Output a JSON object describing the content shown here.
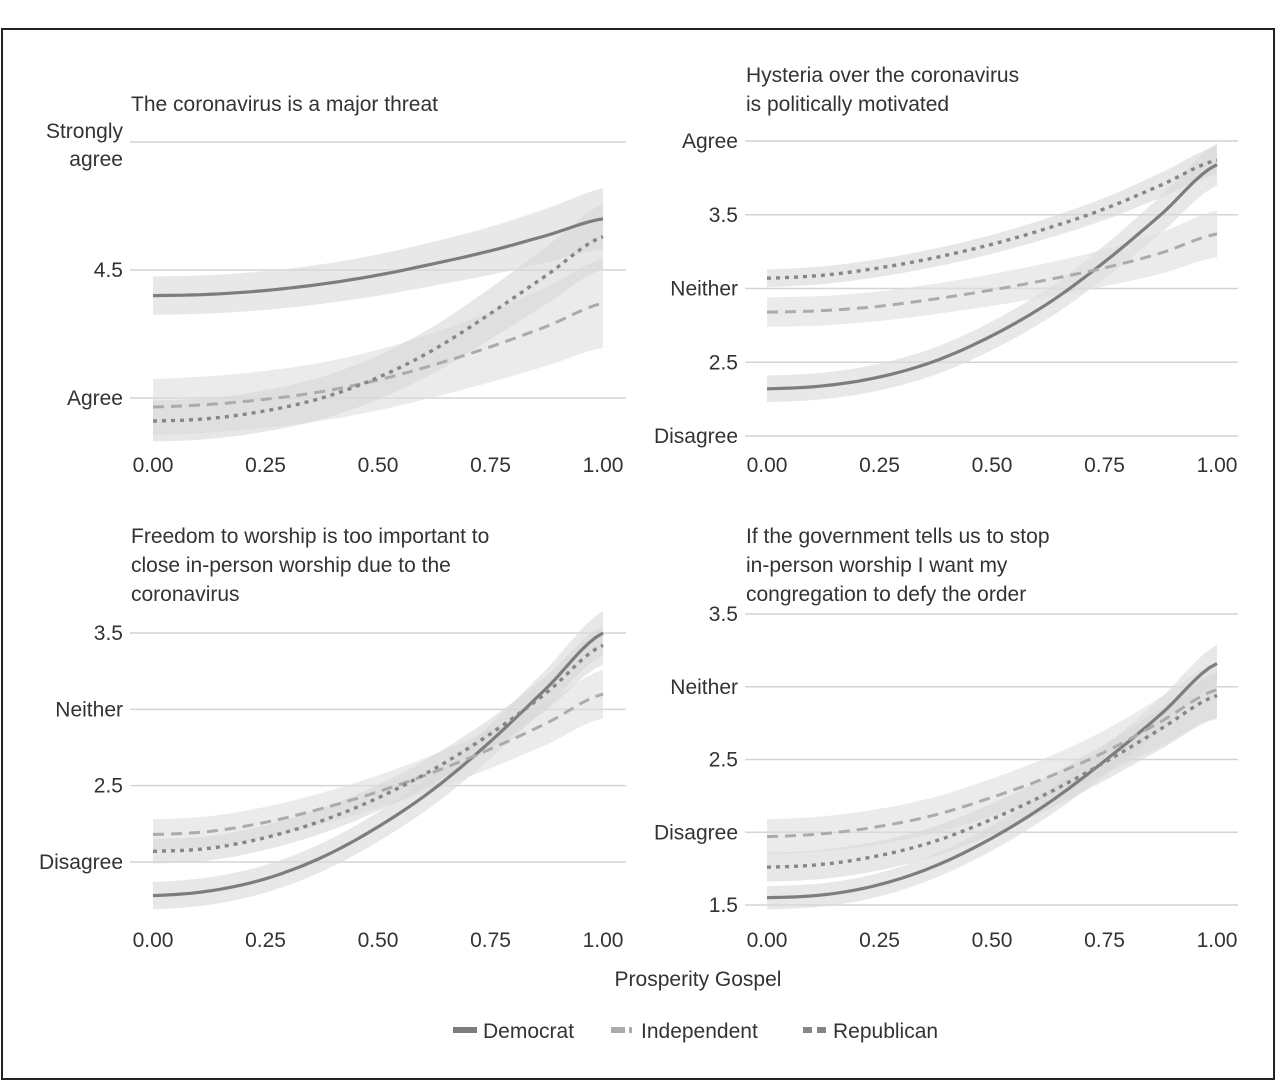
{
  "figure": {
    "xlabel": "Prosperity Gospel",
    "legend": [
      {
        "name": "Democrat",
        "color": "#7d7d7d",
        "style": "solid"
      },
      {
        "name": "Independent",
        "color": "#aeaeae",
        "style": "dashed"
      },
      {
        "name": "Republican",
        "color": "#8a8a8a",
        "style": "dotted"
      }
    ]
  },
  "chart_data": [
    {
      "type": "line",
      "title": "The coronavirus is a major threat",
      "xlabel": "",
      "ylabel": "",
      "x": [
        0,
        0.125,
        0.25,
        0.375,
        0.5,
        0.625,
        0.75,
        0.875,
        1
      ],
      "xticks": [
        "0.00",
        "0.25",
        "0.50",
        "0.75",
        "1.00"
      ],
      "ylim": [
        3.82,
        5.0
      ],
      "yticks": [
        {
          "value": 4.0,
          "label": "Agree"
        },
        {
          "value": 4.5,
          "label": "4.5"
        },
        {
          "value": 5.0,
          "label": "Strongly agree"
        }
      ],
      "series": [
        {
          "name": "Democrat",
          "values": [
            4.4,
            4.405,
            4.42,
            4.445,
            4.48,
            4.525,
            4.575,
            4.635,
            4.7
          ],
          "band": 0.075
        },
        {
          "name": "Independent",
          "values": [
            3.965,
            3.975,
            3.995,
            4.025,
            4.07,
            4.13,
            4.2,
            4.28,
            4.37
          ],
          "band": 0.11
        },
        {
          "name": "Republican",
          "values": [
            3.91,
            3.92,
            3.95,
            4.0,
            4.08,
            4.19,
            4.33,
            4.48,
            4.63
          ],
          "band": 0.08
        }
      ]
    },
    {
      "type": "line",
      "title": "Hysteria over the coronavirus is politically motivated",
      "xlabel": "",
      "ylabel": "",
      "x": [
        0,
        0.125,
        0.25,
        0.375,
        0.5,
        0.625,
        0.75,
        0.875,
        1
      ],
      "xticks": [
        "0.00",
        "0.25",
        "0.50",
        "0.75",
        "1.00"
      ],
      "ylim": [
        2.0,
        4.0
      ],
      "yticks": [
        {
          "value": 2.0,
          "label": "Disagree"
        },
        {
          "value": 2.5,
          "label": "2.5"
        },
        {
          "value": 3.0,
          "label": "Neither"
        },
        {
          "value": 3.5,
          "label": "3.5"
        },
        {
          "value": 4.0,
          "label": "Agree"
        }
      ],
      "series": [
        {
          "name": "Democrat",
          "values": [
            2.32,
            2.34,
            2.4,
            2.51,
            2.68,
            2.9,
            3.18,
            3.5,
            3.84
          ],
          "band": 0.09
        },
        {
          "name": "Independent",
          "values": [
            2.84,
            2.85,
            2.88,
            2.93,
            2.99,
            3.06,
            3.14,
            3.24,
            3.37
          ],
          "band": 0.1
        },
        {
          "name": "Republican",
          "values": [
            3.07,
            3.09,
            3.14,
            3.21,
            3.3,
            3.41,
            3.54,
            3.7,
            3.87
          ],
          "band": 0.06
        }
      ]
    },
    {
      "type": "line",
      "title": "Freedom to worship is too important to close in-person worship due to the coronavirus",
      "xlabel": "",
      "ylabel": "",
      "x": [
        0,
        0.125,
        0.25,
        0.375,
        0.5,
        0.625,
        0.75,
        0.875,
        1
      ],
      "xticks": [
        "0.00",
        "0.25",
        "0.50",
        "0.75",
        "1.00"
      ],
      "ylim": [
        1.55,
        3.6
      ],
      "yticks": [
        {
          "value": 2.0,
          "label": "Disagree"
        },
        {
          "value": 2.5,
          "label": "2.5"
        },
        {
          "value": 3.0,
          "label": "Neither"
        },
        {
          "value": 3.5,
          "label": "3.5"
        }
      ],
      "series": [
        {
          "name": "Democrat",
          "values": [
            1.78,
            1.81,
            1.89,
            2.03,
            2.23,
            2.48,
            2.79,
            3.14,
            3.5
          ],
          "band": 0.09
        },
        {
          "name": "Independent",
          "values": [
            2.18,
            2.2,
            2.26,
            2.35,
            2.46,
            2.59,
            2.74,
            2.91,
            3.1
          ],
          "band": 0.1
        },
        {
          "name": "Republican",
          "values": [
            2.07,
            2.09,
            2.16,
            2.27,
            2.42,
            2.61,
            2.84,
            3.11,
            3.42
          ],
          "band": 0.08
        }
      ]
    },
    {
      "type": "line",
      "title": "If the government tells us to stop in-person worship I want my congregation to defy the order",
      "xlabel": "",
      "ylabel": "",
      "x": [
        0,
        0.125,
        0.25,
        0.375,
        0.5,
        0.625,
        0.75,
        0.875,
        1
      ],
      "xticks": [
        "0.00",
        "0.25",
        "0.50",
        "0.75",
        "1.00"
      ],
      "ylim": [
        1.46,
        3.5
      ],
      "yticks": [
        {
          "value": 1.5,
          "label": "1.5"
        },
        {
          "value": 2.0,
          "label": "Disagree"
        },
        {
          "value": 2.5,
          "label": "2.5"
        },
        {
          "value": 3.0,
          "label": "Neither"
        },
        {
          "value": 3.5,
          "label": "3.5"
        }
      ],
      "series": [
        {
          "name": "Democrat",
          "values": [
            1.55,
            1.57,
            1.64,
            1.77,
            1.96,
            2.2,
            2.49,
            2.81,
            3.16
          ],
          "band": 0.08
        },
        {
          "name": "Independent",
          "values": [
            1.97,
            1.99,
            2.04,
            2.12,
            2.24,
            2.38,
            2.55,
            2.76,
            2.98
          ],
          "band": 0.12
        },
        {
          "name": "Republican",
          "values": [
            1.76,
            1.78,
            1.84,
            1.94,
            2.09,
            2.27,
            2.48,
            2.71,
            2.94
          ],
          "band": 0.1
        }
      ]
    }
  ]
}
